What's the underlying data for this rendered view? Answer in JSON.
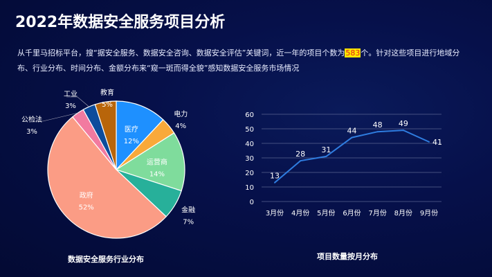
{
  "title": "2022年数据安全服务项目分析",
  "description": {
    "before": "从千里马招标平台，搜“据安全服务、数据安全咨询、数据安全评估”关键词，近一年的项目个数为",
    "highlight": "583",
    "after": "个。针对这些项目进行地域分布、行业分布、时间分布、金额分布来“窥一斑而得全貌”感知数据安全服务市场情况"
  },
  "chart_data": [
    {
      "type": "pie",
      "title": "数据安全服务行业分布",
      "slices": [
        {
          "label": "医疗",
          "value": 12,
          "color": "#1e90ff"
        },
        {
          "label": "电力",
          "value": 4,
          "color": "#f9a93a"
        },
        {
          "label": "运营商",
          "value": 14,
          "color": "#7fdc9c"
        },
        {
          "label": "金融",
          "value": 7,
          "color": "#27b09a"
        },
        {
          "label": "政府",
          "value": 52,
          "color": "#fb9c85"
        },
        {
          "label": "公检法",
          "value": 3,
          "color": "#f27aa0"
        },
        {
          "label": "工业",
          "value": 3,
          "color": "#0d4c9c"
        },
        {
          "label": "教育",
          "value": 5,
          "color": "#b8650a"
        }
      ],
      "value_suffix": "%"
    },
    {
      "type": "line",
      "title": "项目数量按月分布",
      "categories": [
        "3月份",
        "4月份",
        "5月份",
        "6月份",
        "7月份",
        "8月份",
        "9月份"
      ],
      "values": [
        13,
        28,
        31,
        44,
        48,
        49,
        41
      ],
      "ylim": [
        0,
        60
      ],
      "yticks": [
        0,
        10,
        20,
        30,
        40,
        50,
        60
      ],
      "grid": true,
      "color": "#2f7de0"
    }
  ]
}
